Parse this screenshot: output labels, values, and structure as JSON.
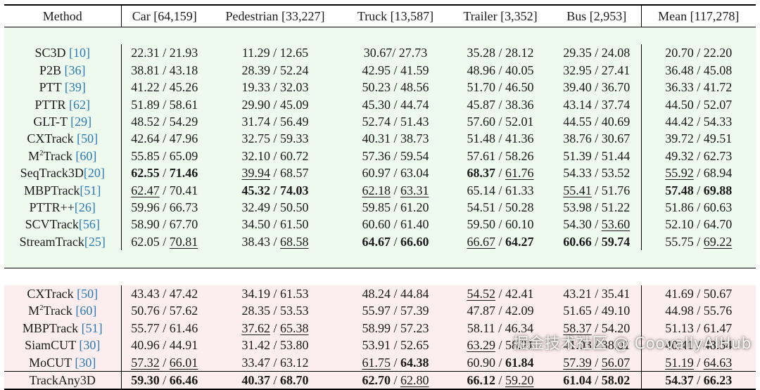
{
  "columns": [
    "Method",
    "Car [64,159]",
    "Pedestrian [33,227]",
    "Truck [13,587]",
    "Trailer [3,352]",
    "Bus [2,953]",
    "Mean [117,278]"
  ],
  "group1": [
    {
      "name": "SC3D ",
      "ref": "[10]",
      "cells": [
        {
          "a": "22.31",
          "b": "21.93"
        },
        {
          "a": "11.29",
          "b": "12.65"
        },
        {
          "a": "30.67",
          "b": "27.73",
          "sep": "/ "
        },
        {
          "a": "35.28",
          "b": "28.12"
        },
        {
          "a": "29.35",
          "b": "24.08"
        },
        {
          "a": "20.70",
          "b": "22.20"
        }
      ]
    },
    {
      "name": "P2B ",
      "ref": "[36]",
      "cells": [
        {
          "a": "38.81",
          "b": "43.18"
        },
        {
          "a": "28.39",
          "b": "52.24"
        },
        {
          "a": "42.95",
          "b": "41.59"
        },
        {
          "a": "48.96",
          "b": "40.05"
        },
        {
          "a": "32.95",
          "b": "27.41"
        },
        {
          "a": "36.48",
          "b": "45.08"
        }
      ]
    },
    {
      "name": "PTT ",
      "ref": "[39]",
      "cells": [
        {
          "a": "41.22",
          "b": "45.26"
        },
        {
          "a": "19.33",
          "b": "32.03"
        },
        {
          "a": "50.23",
          "b": "48.56"
        },
        {
          "a": "51.70",
          "b": "46.50"
        },
        {
          "a": "39.40",
          "b": "36.70"
        },
        {
          "a": "36.33",
          "b": "41.72"
        }
      ]
    },
    {
      "name": "PTTR ",
      "ref": "[62]",
      "cells": [
        {
          "a": "51.89",
          "b": "58.61"
        },
        {
          "a": "29.90",
          "b": "45.09"
        },
        {
          "a": "45.30",
          "b": "44.74"
        },
        {
          "a": "45.87",
          "b": "38.36"
        },
        {
          "a": "43.14",
          "b": "37.74"
        },
        {
          "a": "44.50",
          "b": "52.07"
        }
      ]
    },
    {
      "name": "GLT-T ",
      "ref": "[29]",
      "cells": [
        {
          "a": "48.52",
          "b": "54.29"
        },
        {
          "a": "31.74",
          "b": "56.49"
        },
        {
          "a": "52.74",
          "b": "51.43"
        },
        {
          "a": "57.60",
          "b": "52.01"
        },
        {
          "a": "44.55",
          "b": "40.69"
        },
        {
          "a": "44.42",
          "b": "54.33"
        }
      ]
    },
    {
      "name": "CXTrack ",
      "ref": "[50]",
      "cells": [
        {
          "a": "42.64",
          "b": "47.96"
        },
        {
          "a": "32.75",
          "b": "59.33"
        },
        {
          "a": "40.31",
          "b": "38.73"
        },
        {
          "a": "51.48",
          "b": "41.36"
        },
        {
          "a": "38.76",
          "b": "30.67"
        },
        {
          "a": "39.72",
          "b": "49.51"
        }
      ]
    },
    {
      "name": "M",
      "sup": "2",
      "name2": "Track ",
      "ref": "[60]",
      "cells": [
        {
          "a": "55.85",
          "b": "65.09"
        },
        {
          "a": "32.10",
          "b": "60.72"
        },
        {
          "a": "57.36",
          "b": "59.54"
        },
        {
          "a": "57.61",
          "b": "58.26"
        },
        {
          "a": "51.39",
          "b": "51.44"
        },
        {
          "a": "49.32",
          "b": "62.73"
        }
      ]
    },
    {
      "name": "SeqTrack3D",
      "ref": "[20]",
      "cells": [
        {
          "a": "62.55",
          "b": "71.46",
          "ab": 1,
          "bb": 1
        },
        {
          "a": "39.94",
          "b": "68.57",
          "au": 1
        },
        {
          "a": "60.97",
          "b": "63.04"
        },
        {
          "a": "68.37",
          "b": "61.76",
          "ab": 1,
          "bu": 1
        },
        {
          "a": "54.33",
          "b": "53.52"
        },
        {
          "a": "55.92",
          "b": "68.94",
          "au": 1
        }
      ]
    },
    {
      "name": "MBPTrack",
      "ref": "[51]",
      "cells": [
        {
          "a": "62.47",
          "b": "70.41",
          "au": 1
        },
        {
          "a": "45.32",
          "b": "74.03",
          "ab": 1,
          "bb": 1
        },
        {
          "a": "62.18",
          "b": "63.31",
          "au": 1,
          "bu": 1
        },
        {
          "a": "65.14",
          "b": "61.33"
        },
        {
          "a": "55.41",
          "b": "51.76",
          "au": 1
        },
        {
          "a": "57.48",
          "b": "69.88",
          "ab": 1,
          "bb": 1
        }
      ]
    },
    {
      "name": "PTTR++",
      "ref": "[26]",
      "cells": [
        {
          "a": "59.96",
          "b": "66.73"
        },
        {
          "a": "32.49",
          "b": "50.50"
        },
        {
          "a": "59.85",
          "b": "61.20"
        },
        {
          "a": "54.51",
          "b": "50.28"
        },
        {
          "a": "53.98",
          "b": "51.22"
        },
        {
          "a": "51.86",
          "b": "60.63"
        }
      ]
    },
    {
      "name": "SCVTrack",
      "ref": "[56]",
      "cells": [
        {
          "a": "58.90",
          "b": "67.70"
        },
        {
          "a": "34.50",
          "b": "61.50"
        },
        {
          "a": "60.60",
          "b": "61.40"
        },
        {
          "a": "59.50",
          "b": "60.10"
        },
        {
          "a": "54.30",
          "b": "53.60",
          "bu": 1
        },
        {
          "a": "52.10",
          "b": "64.70"
        }
      ]
    },
    {
      "name": "StreamTrack",
      "ref": "[25]",
      "cells": [
        {
          "a": "62.05",
          "b": "70.81",
          "bu": 1
        },
        {
          "a": "38.43",
          "b": "68.58",
          "bu": 1
        },
        {
          "a": "64.67",
          "b": "66.60",
          "ab": 1,
          "bb": 1
        },
        {
          "a": "66.67",
          "b": "64.27",
          "au": 1,
          "bb": 1
        },
        {
          "a": "60.66",
          "b": "59.74",
          "ab": 1,
          "bb": 1
        },
        {
          "a": "55.75",
          "b": "69.22",
          "bu": 1
        }
      ]
    }
  ],
  "group2": [
    {
      "name": "CXTrack ",
      "ref": "[50]",
      "cells": [
        {
          "a": "43.43",
          "b": "47.42"
        },
        {
          "a": "34.19",
          "b": "61.53"
        },
        {
          "a": "48.24",
          "b": "44.84"
        },
        {
          "a": "54.52",
          "b": "42.41",
          "au": 1
        },
        {
          "a": "43.21",
          "b": "35.41"
        },
        {
          "a": "41.69",
          "b": "50.67"
        }
      ]
    },
    {
      "name": "M",
      "sup": "2",
      "name2": "Track ",
      "ref": "[60]",
      "cells": [
        {
          "a": "50.76",
          "b": "57.62"
        },
        {
          "a": "28.35",
          "b": "53.53"
        },
        {
          "a": "55.97",
          "b": "57.39"
        },
        {
          "a": "47.87",
          "b": "42.09"
        },
        {
          "a": "51.65",
          "b": "49.10"
        },
        {
          "a": "44.98",
          "b": "55.76"
        }
      ]
    },
    {
      "name": "MBPTrack ",
      "ref": "[51]",
      "cells": [
        {
          "a": "55.77",
          "b": "61.46"
        },
        {
          "a": "37.62",
          "b": "65.38",
          "au": 1,
          "bu": 1,
          "sep": "  / "
        },
        {
          "a": "58.99",
          "b": "57.23"
        },
        {
          "a": "58.11",
          "b": "46.34"
        },
        {
          "a": "58.37",
          "b": "54.20",
          "au": 1
        },
        {
          "a": "51.13",
          "b": "61.47"
        }
      ]
    },
    {
      "name": "SiamCUT ",
      "ref": "[30]",
      "cells": [
        {
          "a": "40.96",
          "b": "44.91"
        },
        {
          "a": "31.42",
          "b": "53.80"
        },
        {
          "a": "53.91",
          "b": "52.65"
        },
        {
          "a": "63.29",
          "b": "58.21",
          "au": 1
        },
        {
          "a": "41.03",
          "b": "38.01"
        },
        {
          "a": "40.41",
          "b": "48.54"
        }
      ]
    },
    {
      "name": "MoCUT ",
      "ref": "[30]",
      "cells": [
        {
          "a": "57.32",
          "b": "66.01",
          "au": 1,
          "bu": 1
        },
        {
          "a": "33.47",
          "b": "63.12"
        },
        {
          "a": "61.75",
          "b": "64.38",
          "au": 1,
          "bb": 1
        },
        {
          "a": "60.90",
          "b": "61.84",
          "bb": 1
        },
        {
          "a": "57.39",
          "b": "56.07",
          "au": 1,
          "bu": 1
        },
        {
          "a": "51.19",
          "b": "64.63",
          "au": 1,
          "bu": 1
        }
      ]
    }
  ],
  "group3": [
    {
      "name": "TrackAny3D",
      "cells": [
        {
          "a": "59.30",
          "b": "66.46",
          "ab": 1,
          "bb": 1
        },
        {
          "a": "40.37",
          "b": "68.70",
          "ab": 1,
          "bb": 1
        },
        {
          "a": "62.70",
          "b": "62.80",
          "ab": 1,
          "bu": 1
        },
        {
          "a": "66.12",
          "b": "59.20",
          "ab": 1,
          "bu": 1
        },
        {
          "a": "61.04",
          "b": "58.02",
          "ab": 1,
          "bb": 1
        },
        {
          "a": "54.37",
          "b": "66.23",
          "ab": 1,
          "bb": 1
        }
      ]
    }
  ],
  "watermark": "掘金技术社区 @ CoovallyAIHub"
}
